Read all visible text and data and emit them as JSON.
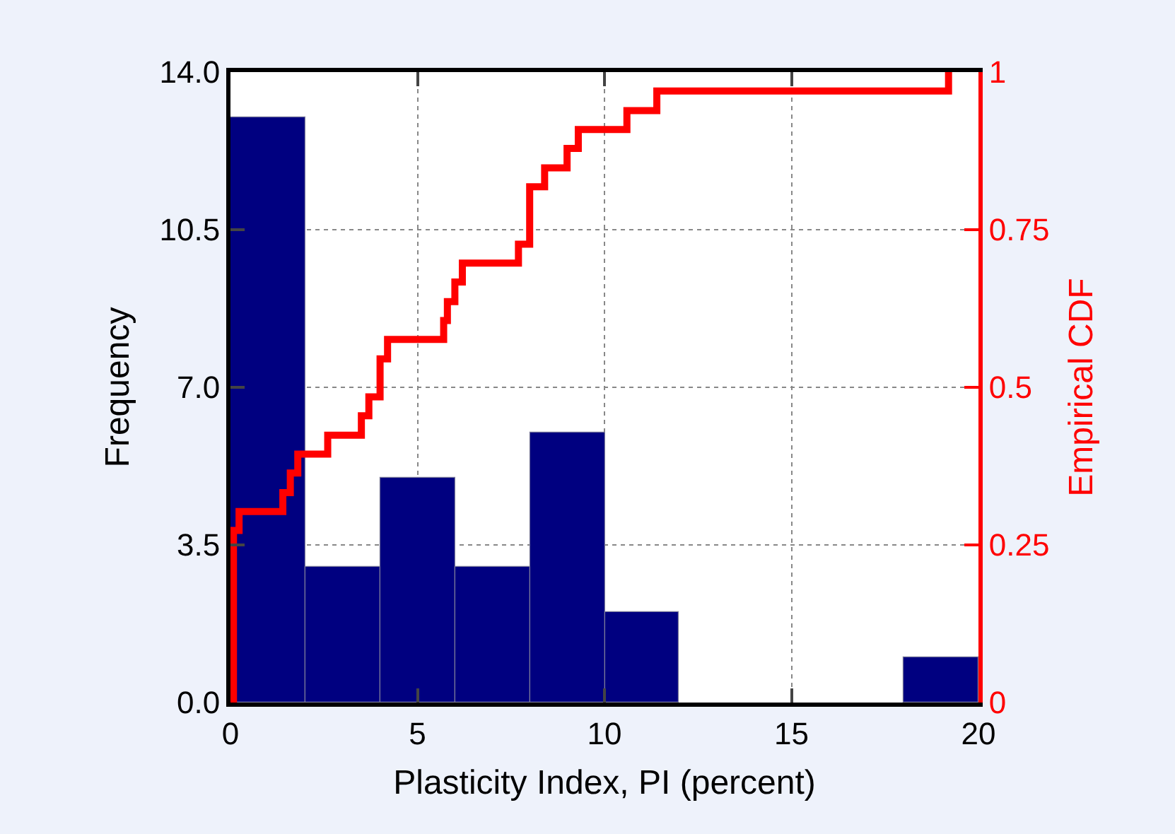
{
  "chart_data": {
    "type": "histogram",
    "xlabel": "Plasticity Index, PI (percent)",
    "ylabel": "Frequency",
    "y2label": "Empirical CDF",
    "series": [
      {
        "bins": [
          0,
          2,
          4,
          6,
          8,
          10,
          12,
          14,
          16,
          18,
          20
        ],
        "values": [
          13,
          3,
          5,
          3,
          6,
          2,
          0,
          0,
          0,
          1
        ],
        "color": "#000080"
      },
      {
        "type": "step",
        "axis": "y2",
        "color": "#ff0000",
        "x": [
          0.08,
          0.08,
          0.23,
          1.4,
          1.6,
          1.8,
          2.6,
          3.5,
          3.7,
          4.0,
          4.2,
          5.7,
          5.8,
          6.0,
          6.2,
          7.7,
          8.0,
          8.4,
          9.0,
          9.3,
          10.6,
          11.4,
          19.2
        ],
        "values": [
          0,
          0.273,
          0.303,
          0.333,
          0.364,
          0.394,
          0.424,
          0.455,
          0.485,
          0.545,
          0.576,
          0.606,
          0.636,
          0.667,
          0.697,
          0.727,
          0.818,
          0.848,
          0.879,
          0.909,
          0.939,
          0.97,
          1.0
        ]
      }
    ],
    "xlim": [
      0,
      20
    ],
    "xticks": [
      0,
      5,
      10,
      15,
      20
    ],
    "ylim": [
      0,
      14
    ],
    "yticks": [
      {
        "value": 0,
        "label": "0.0"
      },
      {
        "value": 3.5,
        "label": "3.5"
      },
      {
        "value": 7,
        "label": "7.0"
      },
      {
        "value": 10.5,
        "label": "10.5"
      },
      {
        "value": 14,
        "label": "14.0"
      }
    ],
    "y2lim": [
      0,
      1
    ],
    "y2ticks": [
      0,
      0.25,
      0.5,
      0.75,
      1
    ],
    "grid": true,
    "line_style": "solid"
  }
}
